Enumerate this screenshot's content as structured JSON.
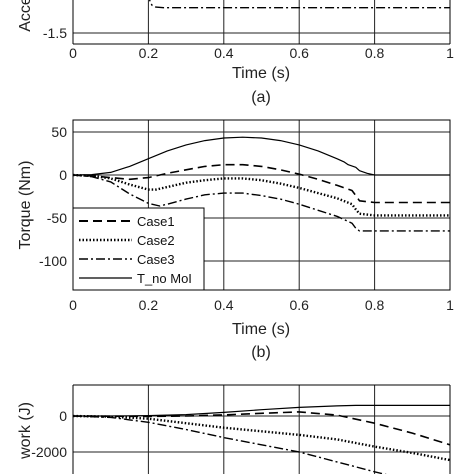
{
  "chart_data": [
    {
      "type": "line",
      "caption": "(a)",
      "xlabel": "Time (s)",
      "ylabel": "Acce",
      "xlim": [
        0,
        1
      ],
      "ylim_visible": [
        -1.6,
        -1.0
      ],
      "xticks": [
        "0",
        "0.2",
        "0.4",
        "0.6",
        "0.8",
        "1"
      ],
      "yticks": [
        {
          "v": -1.5,
          "label": "-1.5"
        }
      ],
      "grid": true,
      "series": [
        {
          "style": "dashdot",
          "x": [
            0.18,
            0.195,
            0.2,
            0.205,
            0.21,
            0.22,
            0.24,
            0.3,
            0.5,
            0.7,
            1.0
          ],
          "y": [
            -1.0,
            -1.05,
            -1.16,
            -1.22,
            -1.25,
            -1.265,
            -1.27,
            -1.27,
            -1.27,
            -1.27,
            -1.27
          ]
        }
      ]
    },
    {
      "type": "line",
      "caption": "(b)",
      "xlabel": "Time (s)",
      "ylabel": "Torque (Nm)",
      "xlim": [
        0,
        1
      ],
      "ylim": [
        -135,
        65
      ],
      "xticks": [
        "0",
        "0.2",
        "0.4",
        "0.6",
        "0.8",
        "1"
      ],
      "yticks": [
        {
          "v": 50,
          "label": "50"
        },
        {
          "v": 0,
          "label": "0"
        },
        {
          "v": -50,
          "label": "-50"
        },
        {
          "v": -100,
          "label": "-100"
        }
      ],
      "grid": true,
      "legend_position": "bottom-left",
      "series": [
        {
          "name": "Case1",
          "style": "dashed",
          "x": [
            0,
            0.05,
            0.1,
            0.15,
            0.2,
            0.25,
            0.3,
            0.35,
            0.4,
            0.45,
            0.5,
            0.55,
            0.6,
            0.65,
            0.7,
            0.74,
            0.75,
            0.76,
            0.8,
            0.85,
            0.9,
            1.0
          ],
          "y": [
            0,
            -1,
            -3,
            -5,
            -3,
            2,
            6,
            10,
            12,
            12,
            10,
            6,
            1,
            -5,
            -12,
            -18,
            -24,
            -30,
            -32,
            -32,
            -32,
            -32
          ]
        },
        {
          "name": "Case2",
          "style": "dotted",
          "x": [
            0,
            0.05,
            0.1,
            0.15,
            0.2,
            0.22,
            0.25,
            0.3,
            0.35,
            0.4,
            0.45,
            0.5,
            0.55,
            0.6,
            0.65,
            0.7,
            0.74,
            0.75,
            0.76,
            0.8,
            0.85,
            0.9,
            1.0
          ],
          "y": [
            0,
            -1,
            -4,
            -11,
            -17,
            -17,
            -14,
            -9,
            -6,
            -4,
            -4,
            -6,
            -10,
            -15,
            -21,
            -27,
            -34,
            -40,
            -45,
            -47,
            -47,
            -47,
            -47
          ]
        },
        {
          "name": "Case3",
          "style": "dashdot",
          "x": [
            0,
            0.05,
            0.1,
            0.15,
            0.2,
            0.23,
            0.25,
            0.3,
            0.35,
            0.4,
            0.45,
            0.5,
            0.55,
            0.6,
            0.65,
            0.7,
            0.74,
            0.75,
            0.76,
            0.8,
            0.85,
            0.9,
            1.0
          ],
          "y": [
            0,
            -2,
            -8,
            -22,
            -33,
            -36,
            -34,
            -28,
            -23,
            -21,
            -21,
            -24,
            -28,
            -34,
            -41,
            -48,
            -56,
            -62,
            -65,
            -65,
            -65,
            -65,
            -65
          ]
        },
        {
          "name": "T_no MoI",
          "style": "solid",
          "x": [
            0,
            0.05,
            0.1,
            0.15,
            0.2,
            0.25,
            0.3,
            0.35,
            0.4,
            0.45,
            0.5,
            0.55,
            0.6,
            0.65,
            0.7,
            0.72,
            0.73,
            0.75,
            0.76,
            0.78,
            0.8,
            0.85,
            0.9,
            1.0
          ],
          "y": [
            0,
            0.5,
            3,
            10,
            19,
            28,
            35,
            40,
            43,
            44,
            43,
            40,
            35,
            28,
            19,
            15,
            12,
            9,
            5,
            2,
            0,
            0,
            0,
            0
          ]
        }
      ]
    },
    {
      "type": "line",
      "ylabel": "work (J)",
      "xlim": [
        0,
        1
      ],
      "ylim_visible": [
        -2750,
        500
      ],
      "yticks": [
        {
          "v": 0,
          "label": "0"
        },
        {
          "v": -2000,
          "label": "-2000"
        }
      ],
      "grid": true,
      "series": [
        {
          "style": "solid",
          "x": [
            0,
            0.1,
            0.2,
            0.3,
            0.4,
            0.5,
            0.6,
            0.7,
            0.75,
            0.8,
            0.9,
            1.0
          ],
          "y": [
            0,
            0,
            20,
            80,
            200,
            350,
            480,
            560,
            590,
            590,
            590,
            590
          ]
        },
        {
          "style": "dashed",
          "x": [
            0,
            0.1,
            0.2,
            0.3,
            0.4,
            0.5,
            0.6,
            0.7,
            0.8,
            0.9,
            1.0
          ],
          "y": [
            0,
            -10,
            -20,
            0,
            60,
            150,
            230,
            50,
            -400,
            -950,
            -1600
          ]
        },
        {
          "style": "dotted",
          "x": [
            0,
            0.1,
            0.2,
            0.3,
            0.4,
            0.5,
            0.6,
            0.7,
            0.8,
            0.9,
            1.0
          ],
          "y": [
            0,
            -40,
            -150,
            -400,
            -650,
            -850,
            -1050,
            -1300,
            -1700,
            -2050,
            -2450
          ]
        },
        {
          "style": "dashdot",
          "x": [
            0,
            0.1,
            0.2,
            0.3,
            0.4,
            0.5,
            0.6,
            0.7,
            0.8,
            0.9
          ],
          "y": [
            0,
            -80,
            -350,
            -750,
            -1200,
            -1600,
            -2000,
            -2550,
            -3100,
            -3600
          ]
        }
      ]
    }
  ]
}
